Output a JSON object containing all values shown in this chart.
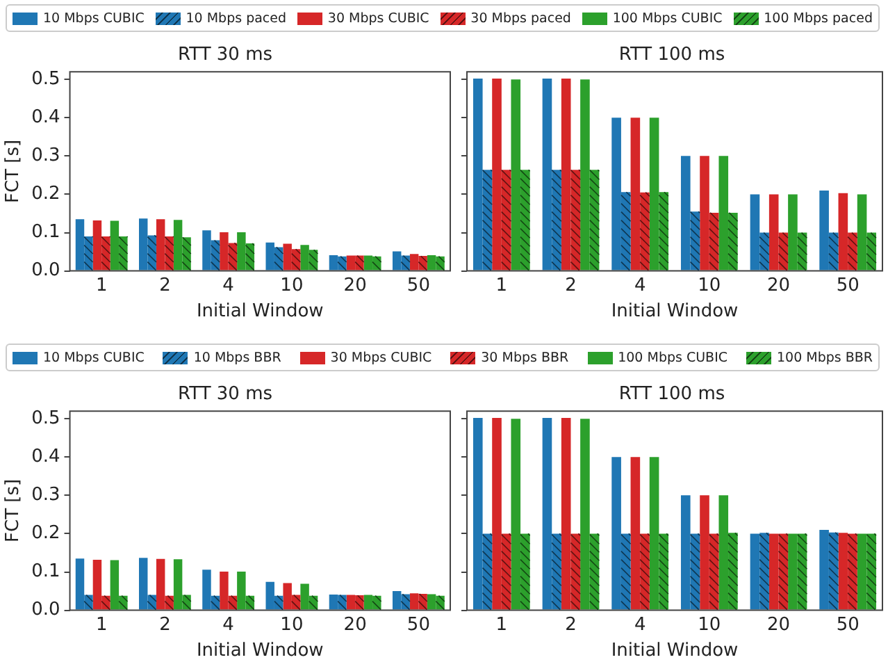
{
  "chart_data": [
    {
      "type": "bar",
      "title": "RTT 30 ms",
      "xlabel": "Initial Window",
      "ylabel": "FCT [s]",
      "categories": [
        "1",
        "2",
        "4",
        "10",
        "20",
        "50"
      ],
      "ylim": [
        0,
        0.52
      ],
      "yticks": [
        {
          "value": 0,
          "label": "0.0"
        },
        0.1,
        0.2,
        0.3,
        0.4,
        0.5
      ],
      "legend": "top",
      "series": [
        {
          "name": "10 Mbps CUBIC",
          "color": "#1f77b4",
          "values": [
            0.135,
            0.137,
            0.106,
            0.074,
            0.041,
            0.051
          ]
        },
        {
          "name": "10 Mbps paced",
          "color": "#1f77b4",
          "values": [
            0.09,
            0.093,
            0.08,
            0.062,
            0.038,
            0.04
          ]
        },
        {
          "name": "30 Mbps CUBIC",
          "color": "#d62728",
          "values": [
            0.132,
            0.135,
            0.101,
            0.071,
            0.04,
            0.044
          ]
        },
        {
          "name": "30 Mbps paced",
          "color": "#d62728",
          "values": [
            0.09,
            0.09,
            0.073,
            0.057,
            0.04,
            0.039
          ]
        },
        {
          "name": "100 Mbps CUBIC",
          "color": "#2ca02c",
          "values": [
            0.131,
            0.133,
            0.101,
            0.068,
            0.04,
            0.041
          ]
        },
        {
          "name": "100 Mbps paced",
          "color": "#2ca02c",
          "values": [
            0.09,
            0.088,
            0.072,
            0.055,
            0.038,
            0.038
          ]
        }
      ]
    },
    {
      "type": "bar",
      "title": "RTT 100 ms",
      "xlabel": "Initial Window",
      "categories": [
        "1",
        "2",
        "4",
        "10",
        "20",
        "50"
      ],
      "ylim": [
        0,
        0.52
      ],
      "yticks": [
        0,
        0.1,
        0.2,
        0.3,
        0.4,
        0.5
      ],
      "tick_labels": "x",
      "series": [
        {
          "color": "#1f77b4",
          "values": [
            0.502,
            0.502,
            0.4,
            0.3,
            0.2,
            0.21
          ]
        },
        {
          "color": "#1f77b4",
          "values": [
            0.264,
            0.264,
            0.206,
            0.155,
            0.1,
            0.1
          ]
        },
        {
          "color": "#d62728",
          "values": [
            0.502,
            0.502,
            0.4,
            0.3,
            0.2,
            0.203
          ]
        },
        {
          "color": "#d62728",
          "values": [
            0.264,
            0.264,
            0.205,
            0.152,
            0.1,
            0.1
          ]
        },
        {
          "color": "#2ca02c",
          "values": [
            0.5,
            0.5,
            0.4,
            0.3,
            0.2,
            0.2
          ]
        },
        {
          "color": "#2ca02c",
          "values": [
            0.264,
            0.264,
            0.206,
            0.152,
            0.1,
            0.1
          ]
        }
      ]
    },
    {
      "type": "bar",
      "title": "RTT 30 ms",
      "xlabel": "Initial Window",
      "ylabel": "FCT [s]",
      "categories": [
        "1",
        "2",
        "4",
        "10",
        "20",
        "50"
      ],
      "ylim": [
        0,
        0.52
      ],
      "yticks": [
        {
          "value": 0,
          "label": "0.0"
        },
        0.1,
        0.2,
        0.3,
        0.4,
        0.5
      ],
      "legend": "top",
      "series": [
        {
          "name": "10 Mbps CUBIC",
          "color": "#1f77b4",
          "values": [
            0.135,
            0.137,
            0.106,
            0.074,
            0.041,
            0.05
          ]
        },
        {
          "name": "10 Mbps BBR",
          "color": "#1f77b4",
          "values": [
            0.04,
            0.04,
            0.038,
            0.038,
            0.04,
            0.042
          ]
        },
        {
          "name": "30 Mbps CUBIC",
          "color": "#d62728",
          "values": [
            0.132,
            0.134,
            0.101,
            0.071,
            0.04,
            0.044
          ]
        },
        {
          "name": "30 Mbps BBR",
          "color": "#d62728",
          "values": [
            0.038,
            0.038,
            0.038,
            0.04,
            0.039,
            0.043
          ]
        },
        {
          "name": "100 Mbps CUBIC",
          "color": "#2ca02c",
          "values": [
            0.131,
            0.133,
            0.101,
            0.069,
            0.04,
            0.042
          ]
        },
        {
          "name": "100 Mbps BBR",
          "color": "#2ca02c",
          "values": [
            0.038,
            0.04,
            0.038,
            0.038,
            0.038,
            0.038
          ]
        }
      ]
    },
    {
      "type": "bar",
      "title": "RTT 100 ms",
      "xlabel": "Initial Window",
      "categories": [
        "1",
        "2",
        "4",
        "10",
        "20",
        "50"
      ],
      "ylim": [
        0,
        0.52
      ],
      "yticks": [
        0,
        0.1,
        0.2,
        0.3,
        0.4,
        0.5
      ],
      "tick_labels": "x",
      "series": [
        {
          "color": "#1f77b4",
          "values": [
            0.502,
            0.502,
            0.4,
            0.3,
            0.2,
            0.21
          ]
        },
        {
          "color": "#1f77b4",
          "values": [
            0.2,
            0.2,
            0.2,
            0.2,
            0.202,
            0.203
          ]
        },
        {
          "color": "#d62728",
          "values": [
            0.502,
            0.502,
            0.4,
            0.3,
            0.2,
            0.202
          ]
        },
        {
          "color": "#d62728",
          "values": [
            0.2,
            0.2,
            0.2,
            0.2,
            0.2,
            0.2
          ]
        },
        {
          "color": "#2ca02c",
          "values": [
            0.5,
            0.5,
            0.4,
            0.3,
            0.2,
            0.2
          ]
        },
        {
          "color": "#2ca02c",
          "values": [
            0.2,
            0.2,
            0.2,
            0.202,
            0.2,
            0.2
          ]
        }
      ]
    }
  ]
}
